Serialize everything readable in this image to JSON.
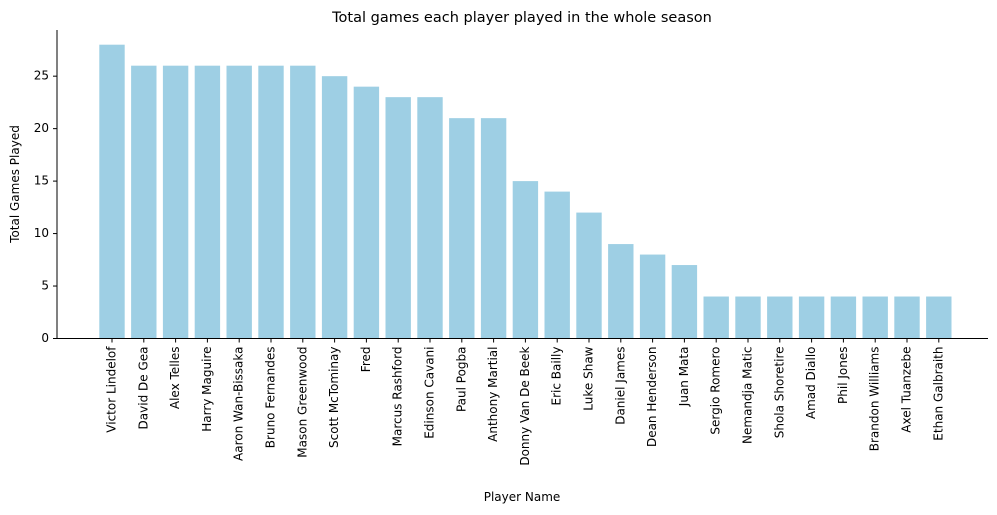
{
  "chart_data": {
    "type": "bar",
    "title": "Total games each player played in the whole season",
    "xlabel": "Player Name",
    "ylabel": "Total Games Played",
    "bar_color": "#9ecfe4",
    "ylim": [
      0,
      29.4
    ],
    "yticks": [
      0,
      5,
      10,
      15,
      20,
      25
    ],
    "grid": false,
    "categories": [
      "Victor Lindelof",
      "David De Gea",
      "Alex Telles",
      "Harry Maguire",
      "Aaron Wan-Bissaka",
      "Bruno Fernandes",
      "Mason Greenwood",
      "Scott McTominay",
      "Fred",
      "Marcus Rashford",
      "Edinson Cavani",
      "Paul Pogba",
      "Anthony Martial",
      "Donny Van De Beek",
      "Eric Bailly",
      "Luke Shaw",
      "Daniel James",
      "Dean Henderson",
      "Juan Mata",
      "Sergio Romero",
      "Nemandja Matic",
      "Shola Shoretire",
      "Amad Diallo",
      "Phil Jones",
      "Brandon Williams",
      "Axel Tuanzebe",
      "Ethan Galbraith"
    ],
    "values": [
      28,
      26,
      26,
      26,
      26,
      26,
      26,
      25,
      24,
      23,
      23,
      21,
      21,
      15,
      14,
      12,
      9,
      8,
      7,
      4,
      4,
      4,
      4,
      4,
      4,
      4,
      4
    ]
  }
}
